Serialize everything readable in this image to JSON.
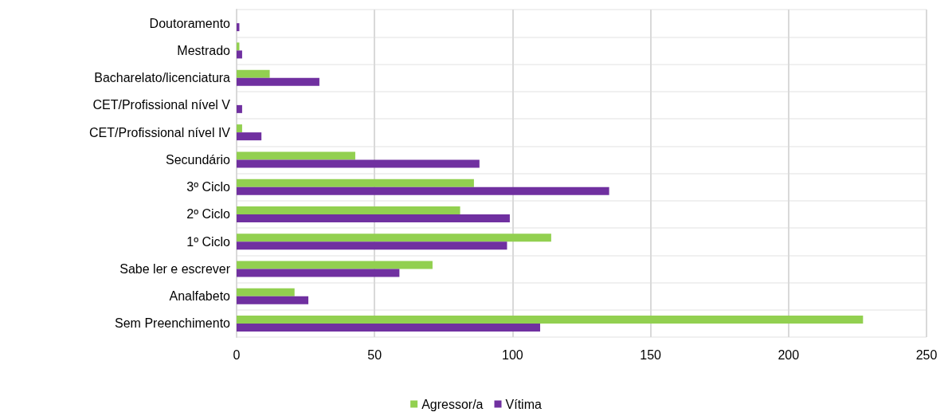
{
  "chart_data": {
    "type": "bar",
    "orientation": "horizontal",
    "categories": [
      "Doutoramento",
      "Mestrado",
      "Bacharelato/licenciatura",
      "CET/Profissional nível V",
      "CET/Profissional nível IV",
      "Secundário",
      "3º Ciclo",
      "2º Ciclo",
      "1º Ciclo",
      "Sabe ler e escrever",
      "Analfabeto",
      "Sem Preenchimento"
    ],
    "series": [
      {
        "name": "Agressor/a",
        "color": "#92d050",
        "values": [
          0,
          1,
          12,
          0,
          2,
          43,
          86,
          81,
          114,
          71,
          21,
          227
        ]
      },
      {
        "name": "Vítima",
        "color": "#7030a0",
        "values": [
          1,
          2,
          30,
          2,
          9,
          88,
          135,
          99,
          98,
          59,
          26,
          110
        ]
      }
    ],
    "xlim": [
      0,
      250
    ],
    "xticks": [
      0,
      50,
      100,
      150,
      200,
      250
    ],
    "grid": true,
    "legend": "bottom"
  }
}
